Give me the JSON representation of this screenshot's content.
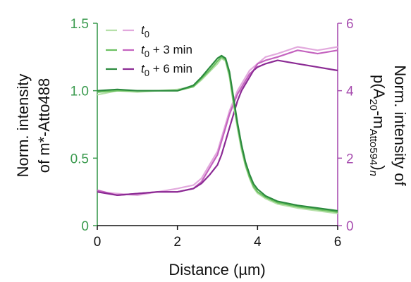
{
  "chart_data": {
    "type": "line",
    "xlabel": "Distance (µm)",
    "ylabel_left": {
      "line1": "Norm. intensity",
      "line2": "of m*-Atto488"
    },
    "ylabel_right": {
      "line1": "Norm. intensity of",
      "line2_main": "p(A",
      "line2_sub1": "20",
      "line2_mid": "-m",
      "line2_sub2": "Atto594",
      "line2_close": ")",
      "line2_sub3": "n"
    },
    "xlim": [
      0,
      6
    ],
    "ylim_left": [
      0,
      1.5
    ],
    "ylim_right": [
      0,
      6
    ],
    "x_ticks": [
      "0",
      "2",
      "4",
      "6"
    ],
    "y_ticks_left": [
      "0",
      "0.5",
      "1.0",
      "1.5"
    ],
    "y_ticks_right": [
      "0",
      "2",
      "4",
      "6"
    ],
    "legend": [
      {
        "t": "t",
        "sub": "0",
        "suffix": ""
      },
      {
        "t": "t",
        "sub": "0",
        "suffix": " + 3 min"
      },
      {
        "t": "t",
        "sub": "0",
        "suffix": " + 6 min"
      }
    ],
    "colors": {
      "green_axis": "#3a9a4e",
      "purple_axis": "#a84fb0",
      "green": [
        "#b6e0a9",
        "#6cc161",
        "#2b8a3e"
      ],
      "purple": [
        "#e2a9dd",
        "#c463bf",
        "#8b2a94"
      ]
    },
    "x": [
      0.0,
      0.5,
      1.0,
      1.5,
      2.0,
      2.4,
      2.6,
      2.8,
      3.0,
      3.1,
      3.2,
      3.3,
      3.4,
      3.5,
      3.6,
      3.7,
      3.8,
      3.9,
      4.0,
      4.2,
      4.5,
      5.0,
      5.5,
      6.0
    ],
    "series_green": [
      {
        "name": "t0",
        "values": [
          0.97,
          1.0,
          0.99,
          1.0,
          1.01,
          1.03,
          1.08,
          1.14,
          1.2,
          1.24,
          1.22,
          1.1,
          0.9,
          0.72,
          0.56,
          0.44,
          0.35,
          0.28,
          0.24,
          0.2,
          0.16,
          0.13,
          0.11,
          0.09
        ]
      },
      {
        "name": "t0 + 3 min",
        "values": [
          0.99,
          1.0,
          1.0,
          1.0,
          1.0,
          1.03,
          1.09,
          1.15,
          1.22,
          1.25,
          1.23,
          1.12,
          0.92,
          0.74,
          0.58,
          0.45,
          0.36,
          0.29,
          0.25,
          0.21,
          0.17,
          0.14,
          0.12,
          0.1
        ]
      },
      {
        "name": "t0 + 6 min",
        "values": [
          1.0,
          1.01,
          1.0,
          1.0,
          1.0,
          1.04,
          1.1,
          1.17,
          1.24,
          1.26,
          1.24,
          1.14,
          0.95,
          0.76,
          0.6,
          0.47,
          0.38,
          0.31,
          0.27,
          0.22,
          0.18,
          0.15,
          0.13,
          0.11
        ]
      }
    ],
    "series_purple": [
      {
        "name": "t0",
        "values": [
          1.0,
          0.95,
          0.9,
          1.0,
          1.1,
          1.2,
          1.4,
          1.8,
          2.2,
          2.6,
          3.0,
          3.4,
          3.7,
          4.0,
          4.2,
          4.4,
          4.6,
          4.7,
          4.8,
          5.0,
          5.1,
          5.3,
          5.2,
          5.3
        ]
      },
      {
        "name": "t0 + 3 min",
        "values": [
          1.05,
          0.9,
          0.95,
          1.0,
          1.0,
          1.1,
          1.3,
          1.7,
          2.1,
          2.5,
          2.9,
          3.3,
          3.6,
          3.9,
          4.1,
          4.3,
          4.5,
          4.6,
          4.8,
          4.9,
          5.0,
          5.2,
          5.1,
          5.2
        ]
      },
      {
        "name": "t0 + 6 min",
        "values": [
          1.0,
          0.9,
          0.95,
          1.0,
          1.0,
          1.1,
          1.25,
          1.5,
          1.8,
          2.1,
          2.5,
          2.9,
          3.3,
          3.7,
          4.0,
          4.2,
          4.4,
          4.6,
          4.7,
          4.8,
          4.9,
          4.8,
          4.7,
          4.6
        ]
      }
    ]
  }
}
